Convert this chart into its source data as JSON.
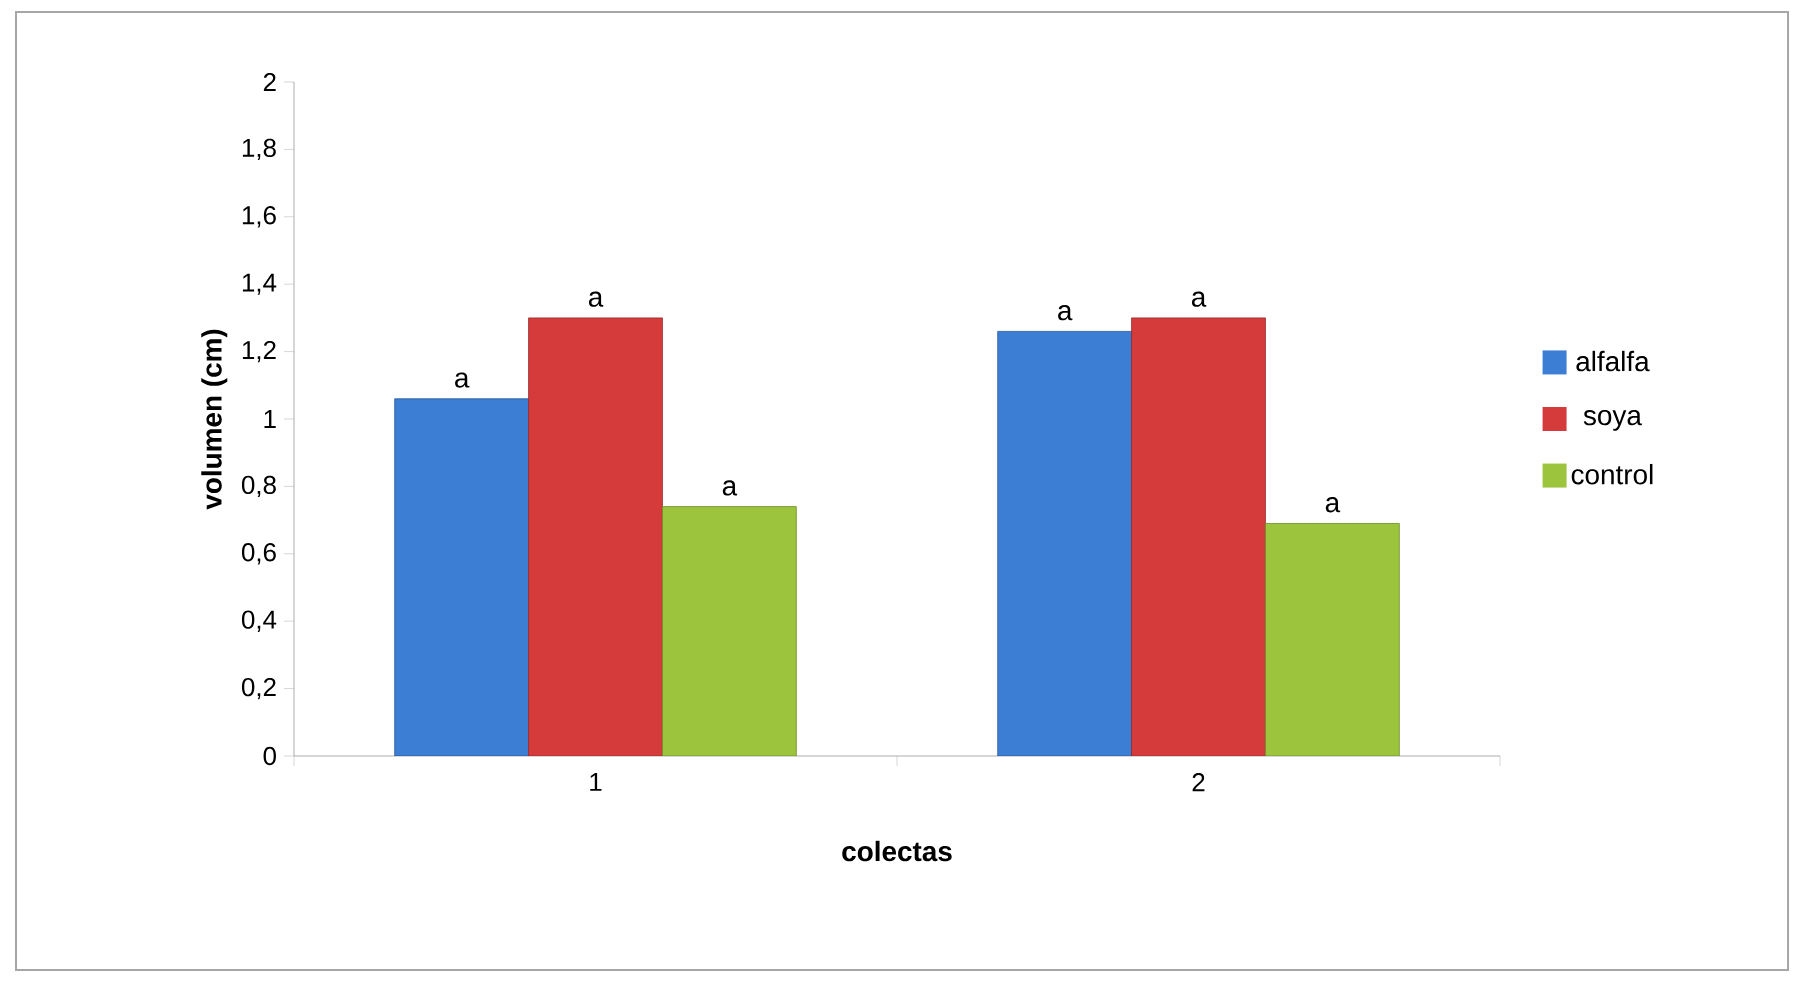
{
  "chart_data": {
    "type": "bar",
    "xlabel": "colectas",
    "ylabel": "volumen (cm)",
    "categories": [
      "1",
      "2"
    ],
    "series": [
      {
        "name": "alfalfa",
        "color": "#3b7ed4",
        "values": [
          1.06,
          1.26
        ]
      },
      {
        "name": "soya",
        "color": "#d63b3b",
        "values": [
          1.3,
          1.3
        ]
      },
      {
        "name": "control",
        "color": "#9cc43c",
        "values": [
          0.74,
          0.69
        ]
      }
    ],
    "ylim": [
      0,
      2
    ],
    "yticks": [
      0,
      {
        "value": 0.2,
        "label": "0,2"
      },
      {
        "value": 0.4,
        "label": "0,4"
      },
      {
        "value": 0.6,
        "label": "0,6"
      },
      {
        "value": 0.8,
        "label": "0,8"
      },
      1,
      {
        "value": 1.2,
        "label": "1,2"
      },
      {
        "value": 1.4,
        "label": "1,4"
      },
      {
        "value": 1.6,
        "label": "1,6"
      },
      {
        "value": 1.8,
        "label": "1,8"
      },
      2
    ],
    "annotations": [
      "a",
      "a",
      "a",
      "a",
      "a",
      "a"
    ],
    "grid": false,
    "legend": "right"
  }
}
